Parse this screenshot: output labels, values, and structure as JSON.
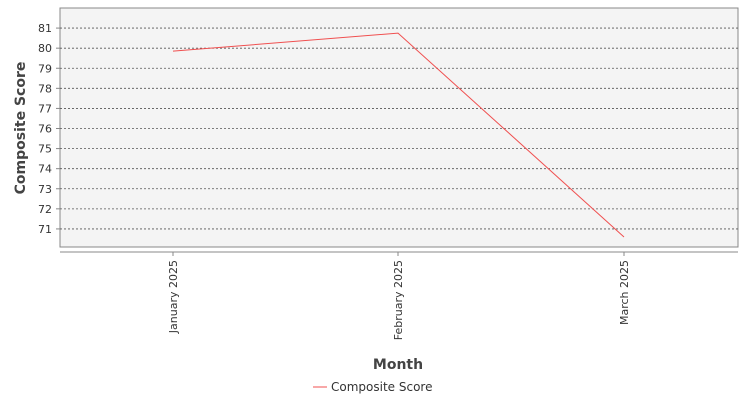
{
  "chart_data": {
    "type": "line",
    "title": "",
    "xlabel": "Month",
    "ylabel": "Composite Score",
    "categories": [
      "January 2025",
      "February 2025",
      "March 2025"
    ],
    "series": [
      {
        "name": "Composite Score",
        "values": [
          79.85,
          80.75,
          70.6
        ],
        "color": "#f05050"
      }
    ],
    "ylim": [
      70.1,
      82.0
    ],
    "yticks": [
      71,
      72,
      73,
      74,
      75,
      76,
      77,
      78,
      79,
      80,
      81
    ],
    "grid": true,
    "legend": "bottom-center",
    "plot_background": "#f4f4f4",
    "gridline_color": "#555555"
  }
}
